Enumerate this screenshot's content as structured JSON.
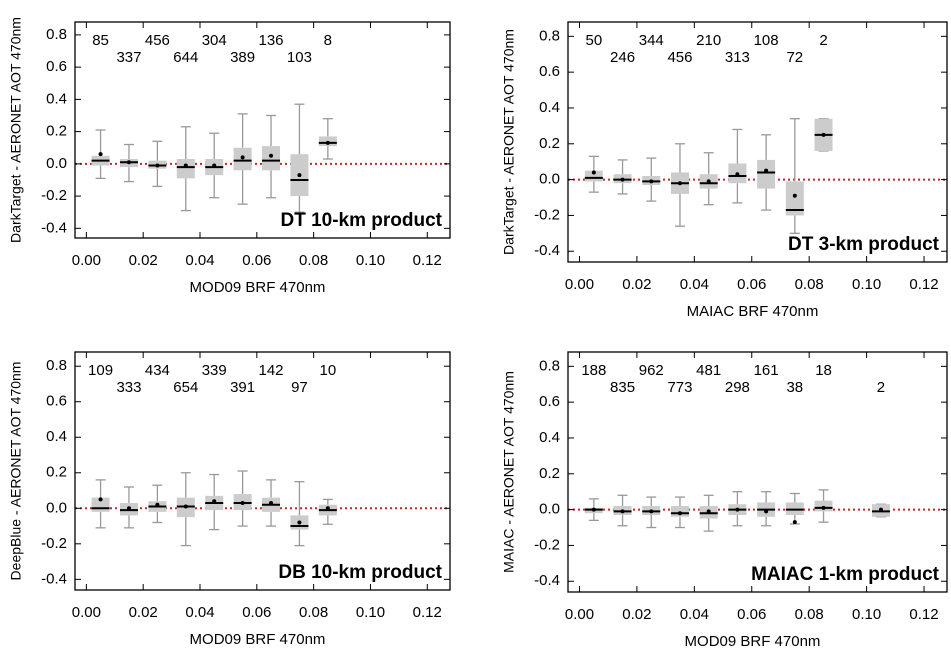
{
  "chart_data": [
    {
      "type": "box",
      "annotation": "DT 10-km product",
      "x_label": "MOD09 BRF 470nm",
      "y_label": "DarkTarget - AERONET AOT 470nm",
      "xlim": [
        -0.004,
        0.128
      ],
      "ylim": [
        -0.46,
        0.88
      ],
      "xticks": [
        {
          "value": 0,
          "label": "0.00"
        },
        0.02,
        0.04,
        0.06,
        0.08,
        {
          "value": 0.1,
          "label": "0.10"
        },
        0.12
      ],
      "yticks": [
        -0.4,
        -0.2,
        {
          "value": 0,
          "label": "0.0"
        },
        0.2,
        0.4,
        0.6,
        0.8
      ],
      "box_color": "#cccccc",
      "whisker_color": "#999999",
      "reference_line": 0,
      "reference_color": "#cc2222",
      "x": [
        0.005,
        0.015,
        0.025,
        0.035,
        0.045,
        0.055,
        0.065,
        0.075,
        0.085
      ],
      "counts": [
        85,
        337,
        456,
        644,
        304,
        389,
        136,
        103,
        8
      ],
      "whisker_low": [
        -0.09,
        -0.11,
        -0.14,
        -0.29,
        -0.21,
        -0.25,
        -0.21,
        -0.3,
        0.03
      ],
      "q1": [
        -0.01,
        -0.02,
        -0.03,
        -0.09,
        -0.07,
        -0.04,
        -0.04,
        -0.2,
        0.11
      ],
      "median": [
        0.02,
        0.01,
        -0.01,
        -0.02,
        -0.02,
        0.02,
        0.02,
        -0.1,
        0.13
      ],
      "q3": [
        0.05,
        0.03,
        0.02,
        0.03,
        0.03,
        0.1,
        0.11,
        0.06,
        0.17
      ],
      "whisker_high": [
        0.21,
        0.12,
        0.14,
        0.23,
        0.19,
        0.31,
        0.3,
        0.37,
        0.28
      ],
      "mean": [
        0.06,
        0.01,
        -0.01,
        -0.01,
        -0.01,
        0.04,
        0.05,
        -0.07,
        0.13
      ]
    },
    {
      "type": "box",
      "annotation": "DT 3-km product",
      "x_label": "MAIAC BRF 470nm",
      "y_label": "DarkTarget - AERONET AOT 470nm",
      "xlim": [
        -0.004,
        0.128
      ],
      "ylim": [
        -0.46,
        0.88
      ],
      "xticks": [
        {
          "value": 0,
          "label": "0.00"
        },
        0.02,
        0.04,
        0.06,
        0.08,
        {
          "value": 0.1,
          "label": "0.10"
        },
        0.12
      ],
      "yticks": [
        -0.4,
        -0.2,
        {
          "value": 0,
          "label": "0.0"
        },
        0.2,
        0.4,
        0.6,
        0.8
      ],
      "box_color": "#cccccc",
      "whisker_color": "#999999",
      "reference_line": 0,
      "reference_color": "#cc2222",
      "x": [
        0.005,
        0.015,
        0.025,
        0.035,
        0.045,
        0.055,
        0.065,
        0.075,
        0.085
      ],
      "counts": [
        50,
        246,
        344,
        456,
        210,
        313,
        108,
        72,
        2
      ],
      "whisker_low": [
        -0.07,
        -0.08,
        -0.12,
        -0.26,
        -0.14,
        -0.13,
        -0.17,
        -0.3,
        0.16
      ],
      "q1": [
        -0.01,
        -0.02,
        -0.03,
        -0.08,
        -0.05,
        -0.02,
        -0.05,
        -0.2,
        0.16
      ],
      "median": [
        0.01,
        0.0,
        -0.01,
        -0.02,
        -0.02,
        0.02,
        0.04,
        -0.17,
        0.25
      ],
      "q3": [
        0.05,
        0.03,
        0.02,
        0.04,
        0.03,
        0.09,
        0.11,
        -0.01,
        0.34
      ],
      "whisker_high": [
        0.13,
        0.11,
        0.12,
        0.2,
        0.15,
        0.28,
        0.25,
        0.34,
        0.34
      ],
      "mean": [
        0.04,
        0.0,
        -0.01,
        -0.02,
        -0.01,
        0.03,
        0.05,
        -0.09,
        0.25
      ]
    },
    {
      "type": "box",
      "annotation": "DB 10-km product",
      "x_label": "MOD09 BRF 470nm",
      "y_label": "DeepBlue - AERONET AOT 470nm",
      "xlim": [
        -0.004,
        0.128
      ],
      "ylim": [
        -0.46,
        0.88
      ],
      "xticks": [
        {
          "value": 0,
          "label": "0.00"
        },
        0.02,
        0.04,
        0.06,
        0.08,
        {
          "value": 0.1,
          "label": "0.10"
        },
        0.12
      ],
      "yticks": [
        -0.4,
        -0.2,
        {
          "value": 0,
          "label": "0.0"
        },
        0.2,
        0.4,
        0.6,
        0.8
      ],
      "box_color": "#cccccc",
      "whisker_color": "#999999",
      "reference_line": 0,
      "reference_color": "#cc2222",
      "x": [
        0.005,
        0.015,
        0.025,
        0.035,
        0.045,
        0.055,
        0.065,
        0.075,
        0.085
      ],
      "counts": [
        109,
        333,
        434,
        654,
        339,
        391,
        142,
        97,
        10
      ],
      "whisker_low": [
        -0.11,
        -0.11,
        -0.08,
        -0.21,
        -0.12,
        -0.1,
        -0.1,
        -0.21,
        -0.09
      ],
      "q1": [
        -0.02,
        -0.04,
        -0.02,
        -0.05,
        -0.01,
        -0.01,
        -0.02,
        -0.12,
        -0.04
      ],
      "median": [
        0.0,
        -0.01,
        0.01,
        0.01,
        0.03,
        0.03,
        0.02,
        -0.1,
        -0.01
      ],
      "q3": [
        0.06,
        0.03,
        0.04,
        0.06,
        0.07,
        0.08,
        0.06,
        -0.04,
        0.02
      ],
      "whisker_high": [
        0.16,
        0.12,
        0.13,
        0.2,
        0.19,
        0.21,
        0.16,
        0.15,
        0.05
      ],
      "mean": [
        0.05,
        0.0,
        0.02,
        0.01,
        0.04,
        0.03,
        0.03,
        -0.08,
        0.0
      ]
    },
    {
      "type": "box",
      "annotation": "MAIAC 1-km product",
      "x_label": "MOD09 BRF 470nm",
      "y_label": "MAIAC - AERONET AOT 470nm",
      "xlim": [
        -0.004,
        0.128
      ],
      "ylim": [
        -0.46,
        0.88
      ],
      "xticks": [
        {
          "value": 0,
          "label": "0.00"
        },
        0.02,
        0.04,
        0.06,
        0.08,
        {
          "value": 0.1,
          "label": "0.10"
        },
        0.12
      ],
      "yticks": [
        -0.4,
        -0.2,
        {
          "value": 0,
          "label": "0.0"
        },
        0.2,
        0.4,
        0.6,
        0.8
      ],
      "box_color": "#cccccc",
      "whisker_color": "#999999",
      "reference_line": 0,
      "reference_color": "#cc2222",
      "x": [
        0.005,
        0.015,
        0.025,
        0.035,
        0.045,
        0.055,
        0.065,
        0.075,
        0.085,
        0.105
      ],
      "counts": [
        188,
        835,
        962,
        773,
        481,
        298,
        161,
        38,
        18,
        2
      ],
      "whisker_low": [
        -0.06,
        -0.09,
        -0.1,
        -0.1,
        -0.12,
        -0.09,
        -0.09,
        -0.08,
        -0.07,
        -0.04
      ],
      "q1": [
        -0.02,
        -0.03,
        -0.03,
        -0.04,
        -0.05,
        -0.03,
        -0.04,
        -0.03,
        -0.01,
        -0.04
      ],
      "median": [
        0.0,
        -0.01,
        -0.01,
        -0.02,
        -0.02,
        0.0,
        0.0,
        0.0,
        0.01,
        -0.01
      ],
      "q3": [
        0.01,
        0.02,
        0.02,
        0.02,
        0.02,
        0.03,
        0.04,
        0.04,
        0.05,
        0.03
      ],
      "whisker_high": [
        0.06,
        0.08,
        0.07,
        0.07,
        0.08,
        0.1,
        0.1,
        0.09,
        0.11,
        0.03
      ],
      "mean": [
        0.0,
        -0.01,
        -0.01,
        -0.02,
        -0.01,
        0.0,
        -0.01,
        -0.07,
        0.01,
        0.0
      ]
    }
  ]
}
